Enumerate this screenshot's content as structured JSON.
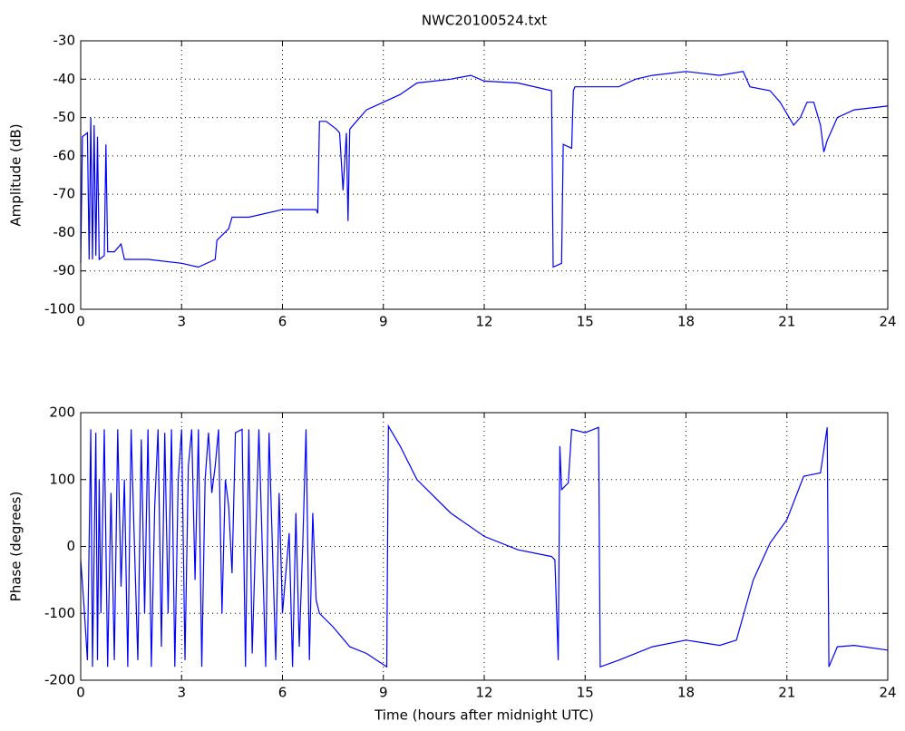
{
  "chart_data": [
    {
      "type": "line",
      "title": "NWC20100524.txt",
      "y_label": "Amplitude (dB)",
      "xlim": [
        0,
        24
      ],
      "xticks": [
        0,
        3,
        6,
        9,
        12,
        15,
        18,
        21,
        24
      ],
      "ylim": [
        -100,
        -30
      ],
      "yticks": [
        -100,
        -90,
        -80,
        -70,
        -60,
        -50,
        -40,
        -30
      ],
      "grid": true,
      "series": [
        {
          "name": "Amplitude",
          "color": "#0000ff",
          "x": [
            0,
            0.05,
            0.2,
            0.25,
            0.3,
            0.35,
            0.4,
            0.45,
            0.5,
            0.55,
            0.7,
            0.75,
            0.8,
            1.0,
            1.2,
            1.3,
            2,
            3,
            3.5,
            4,
            4.05,
            4.4,
            4.5,
            5,
            6,
            7,
            7.05,
            7.1,
            7.3,
            7.6,
            7.7,
            7.8,
            7.9,
            7.95,
            8.0,
            8.2,
            8.5,
            9,
            9.5,
            10,
            11,
            11.6,
            12,
            13,
            14,
            14.05,
            14.3,
            14.35,
            14.6,
            14.65,
            14.7,
            16,
            16.5,
            17,
            18,
            19,
            19.7,
            19.9,
            20.5,
            20.8,
            21.2,
            21.4,
            21.6,
            21.8,
            22.0,
            22.1,
            22.2,
            22.5,
            23,
            24
          ],
          "values": [
            -88,
            -55,
            -54,
            -87,
            -50,
            -87,
            -52,
            -86,
            -55,
            -87,
            -86,
            -57,
            -85,
            -85,
            -83,
            -87,
            -87,
            -88,
            -89,
            -87,
            -82,
            -79,
            -76,
            -76,
            -74,
            -74,
            -75,
            -51,
            -51,
            -53,
            -54,
            -69,
            -54,
            -77,
            -53,
            -51,
            -48,
            -46,
            -44,
            -41,
            -40,
            -39,
            -40.5,
            -41,
            -43,
            -89,
            -88,
            -57,
            -58,
            -43,
            -42,
            -42,
            -40,
            -39,
            -38,
            -39,
            -38,
            -42,
            -43,
            -46,
            -52,
            -50,
            -46,
            -46,
            -52,
            -59,
            -56,
            -50,
            -48,
            -47
          ]
        }
      ]
    },
    {
      "type": "line",
      "x_label": "Time (hours after midnight UTC)",
      "y_label": "Phase (degrees)",
      "xlim": [
        0,
        24
      ],
      "xticks": [
        0,
        3,
        6,
        9,
        12,
        15,
        18,
        21,
        24
      ],
      "ylim": [
        -200,
        200
      ],
      "yticks": [
        -200,
        -100,
        0,
        100,
        200
      ],
      "grid": true,
      "series": [
        {
          "name": "Phase",
          "color": "#0000ff",
          "x": [
            0,
            0.1,
            0.2,
            0.3,
            0.35,
            0.45,
            0.5,
            0.55,
            0.6,
            0.7,
            0.8,
            0.9,
            1.0,
            1.1,
            1.2,
            1.3,
            1.4,
            1.5,
            1.6,
            1.7,
            1.8,
            1.9,
            2.0,
            2.1,
            2.2,
            2.3,
            2.4,
            2.5,
            2.6,
            2.7,
            2.8,
            2.9,
            3.0,
            3.1,
            3.2,
            3.3,
            3.4,
            3.5,
            3.6,
            3.7,
            3.8,
            3.9,
            4.0,
            4.1,
            4.2,
            4.3,
            4.4,
            4.5,
            4.6,
            4.8,
            4.9,
            5.0,
            5.1,
            5.3,
            5.5,
            5.6,
            5.7,
            5.8,
            5.9,
            6.0,
            6.2,
            6.3,
            6.4,
            6.5,
            6.6,
            6.7,
            6.8,
            6.9,
            7.0,
            7.1,
            7.5,
            8,
            8.5,
            9.1,
            9.15,
            9.5,
            10,
            11,
            12,
            13,
            14,
            14.1,
            14.2,
            14.25,
            14.3,
            14.5,
            14.6,
            15,
            15.4,
            15.45,
            16,
            17,
            18,
            19,
            19.5,
            20,
            20.5,
            21,
            21.5,
            22,
            22.2,
            22.25,
            22.5,
            23,
            24
          ],
          "values": [
            -20,
            -90,
            -170,
            175,
            -180,
            170,
            -170,
            100,
            -100,
            175,
            -180,
            80,
            -170,
            175,
            -60,
            100,
            -180,
            175,
            0,
            -170,
            160,
            -100,
            175,
            -180,
            60,
            175,
            -150,
            170,
            -100,
            175,
            -180,
            100,
            175,
            -170,
            120,
            175,
            -50,
            175,
            -180,
            100,
            170,
            80,
            120,
            175,
            -100,
            100,
            60,
            -40,
            170,
            175,
            -180,
            175,
            -160,
            175,
            -180,
            170,
            0,
            -170,
            80,
            -100,
            20,
            -180,
            50,
            -150,
            0,
            175,
            -170,
            50,
            -80,
            -100,
            -120,
            -150,
            -160,
            -180,
            180,
            150,
            100,
            50,
            15,
            -5,
            -15,
            -20,
            -170,
            150,
            85,
            95,
            175,
            170,
            178,
            -180,
            -170,
            -150,
            -140,
            -148,
            -140,
            -50,
            5,
            40,
            105,
            110,
            178,
            -180,
            -150,
            -148,
            -155
          ]
        }
      ]
    }
  ]
}
